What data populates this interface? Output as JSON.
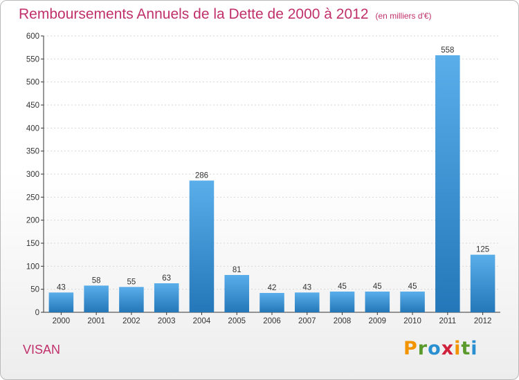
{
  "title": "Remboursements Annuels de la Dette de 2000 à 2012",
  "subtitle": "(en milliers d'€)",
  "commune": "VISAN",
  "logo": {
    "letters": [
      "P",
      "r",
      "o",
      "x",
      "i",
      "t",
      "i"
    ],
    "colors": [
      "#f29400",
      "#5a9a2c",
      "#2a8fd0",
      "#d0213c",
      "#f29400",
      "#5a9a2c",
      "#2a8fd0"
    ]
  },
  "colors": {
    "bar_top": "#5aaeea",
    "bar_bottom": "#2477b8",
    "title": "#c0306a",
    "grid": "#d6d6d6"
  },
  "chart_data": {
    "type": "bar",
    "categories": [
      "2000",
      "2001",
      "2002",
      "2003",
      "2004",
      "2005",
      "2006",
      "2007",
      "2008",
      "2009",
      "2010",
      "2011",
      "2012"
    ],
    "values": [
      43,
      58,
      55,
      63,
      286,
      81,
      42,
      43,
      45,
      45,
      45,
      558,
      125
    ],
    "title": "Remboursements Annuels de la Dette de 2000 à 2012",
    "subtitle": "(en milliers d'€)",
    "ylim": [
      0,
      600
    ],
    "yticks": [
      0,
      50,
      100,
      150,
      200,
      250,
      300,
      350,
      400,
      450,
      500,
      550,
      600
    ],
    "grid": true,
    "data_labels": true
  }
}
